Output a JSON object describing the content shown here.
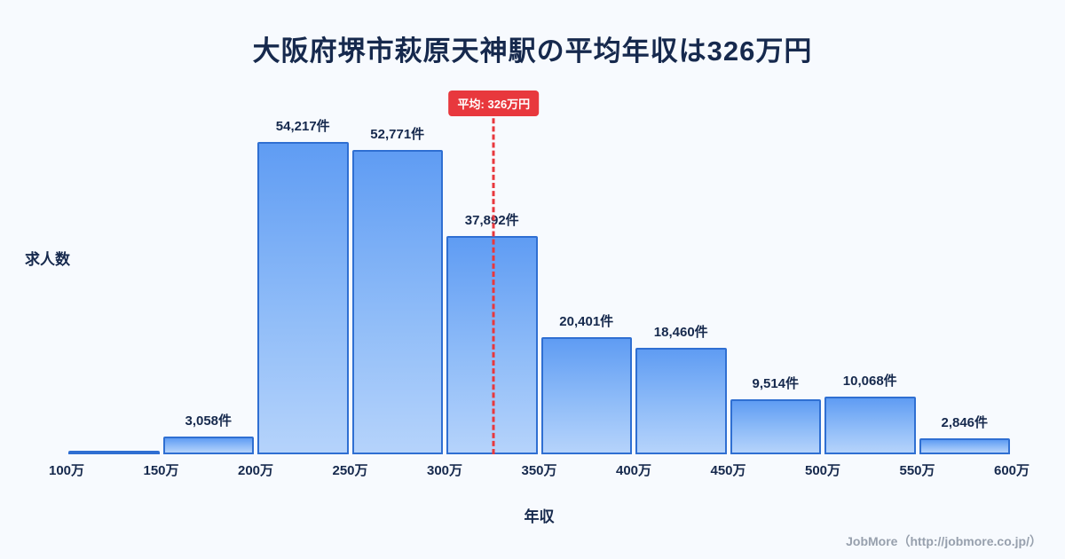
{
  "footer": {
    "credit": "JobMore（http://jobmore.co.jp/）"
  },
  "chart_data": {
    "type": "bar",
    "title": "大阪府堺市萩原天神駅の平均年収は326万円",
    "xlabel": "年収",
    "ylabel": "求人数",
    "x_ticks": [
      "100万",
      "150万",
      "200万",
      "250万",
      "300万",
      "350万",
      "400万",
      "450万",
      "500万",
      "550万",
      "600万"
    ],
    "x_range": [
      100,
      600
    ],
    "bins": [
      {
        "range": "100万-150万",
        "value": null,
        "label": ""
      },
      {
        "range": "150万-200万",
        "value": 3058,
        "label": "3,058件"
      },
      {
        "range": "200万-250万",
        "value": 54217,
        "label": "54,217件"
      },
      {
        "range": "250万-300万",
        "value": 52771,
        "label": "52,771件"
      },
      {
        "range": "300万-350万",
        "value": 37892,
        "label": "37,892件"
      },
      {
        "range": "350万-400万",
        "value": 20401,
        "label": "20,401件"
      },
      {
        "range": "400万-450万",
        "value": 18460,
        "label": "18,460件"
      },
      {
        "range": "450万-500万",
        "value": 9514,
        "label": "9,514件"
      },
      {
        "range": "500万-550万",
        "value": 10068,
        "label": "10,068件"
      },
      {
        "range": "550万-600万",
        "value": 2846,
        "label": "2,846件"
      }
    ],
    "average": {
      "value": 326,
      "label": "平均: 326万円"
    },
    "legend": "off",
    "grid": "off",
    "colors": {
      "bar_fill_top": "#5f9cf3",
      "bar_fill_bottom": "#b5d3fb",
      "bar_border": "#2f6fd2",
      "average_line": "#e8383d",
      "title": "#16294d",
      "background": "#f7fafe",
      "footer_text": "#97a0ad"
    }
  }
}
